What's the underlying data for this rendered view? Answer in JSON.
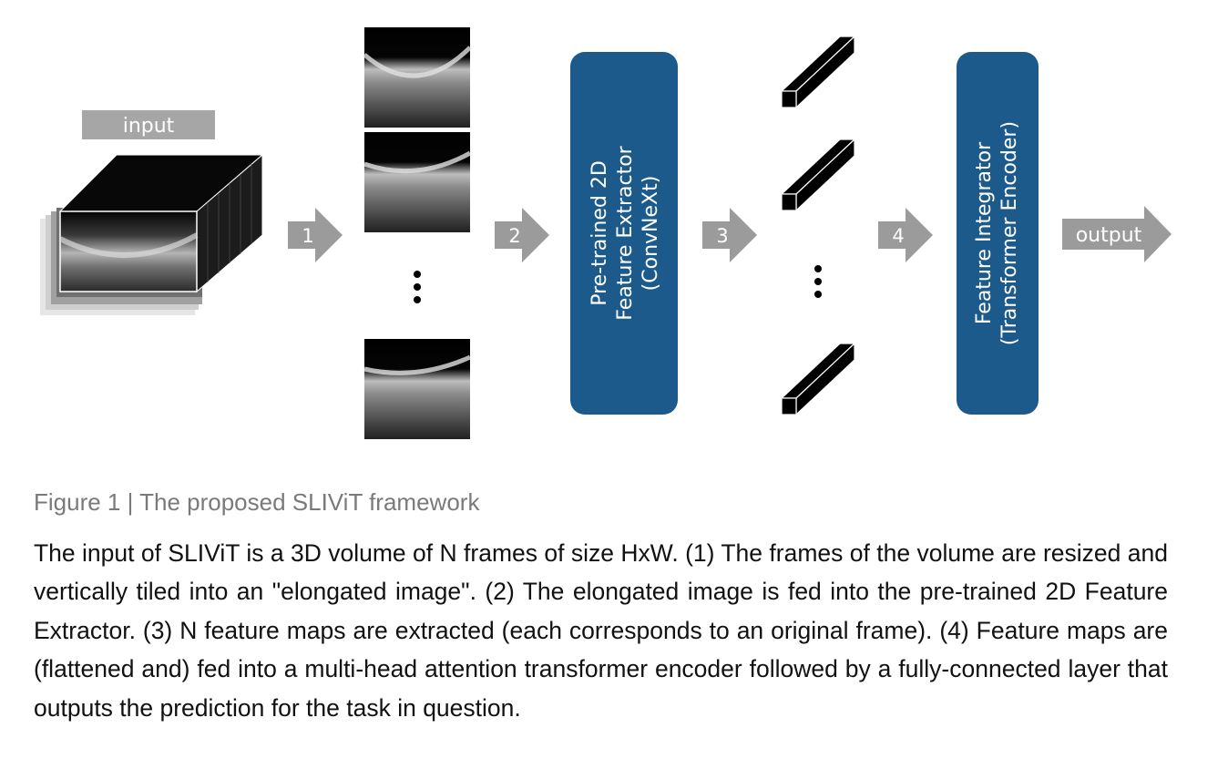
{
  "labels": {
    "input": "input",
    "output": "output",
    "arrows": [
      "1",
      "2",
      "3",
      "4"
    ],
    "extractor": [
      "Pre-trained 2D",
      "Feature Extractor",
      "(ConvNeXt)"
    ],
    "integrator": [
      "Feature Integrator",
      "(Transformer Encoder)"
    ]
  },
  "caption": {
    "title": "Figure 1 | The proposed SLIViT framework",
    "body": "The input of SLIViT is a 3D volume of N frames of size HxW. (1) The frames of the volume are resized and vertically tiled into an \"elongated image\". (2) The elongated image is fed into the pre-trained 2D Feature Extractor. (3) N feature maps are extracted (each corresponds to an original frame). (4) Feature maps are (flattened and) fed into a multi-head attention transformer encoder followed by a fully-connected layer that outputs the prediction for the task in question."
  },
  "colors": {
    "block_blue": "#1c5a8c",
    "arrow_gray": "#9b9b9b",
    "label_gray": "#a6a6a6"
  }
}
